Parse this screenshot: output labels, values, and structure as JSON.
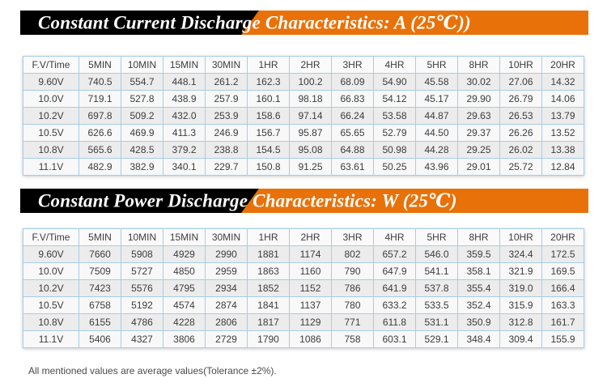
{
  "colors": {
    "banner_black": "#000000",
    "banner_orange": "#E87209",
    "table_border_blue": "#A6CDE6",
    "row_shade_odd": "#ECECEC",
    "row_shade_even": "#F8F8F8",
    "header_row_bg": "#FAFAFA",
    "text": "#3C3C3C"
  },
  "banners": [
    {
      "title": "Constant Current Discharge Characteristics: A (25℃))"
    },
    {
      "title": "Constant Power Discharge Characteristics: W (25℃)"
    }
  ],
  "tables": [
    {
      "name": "constant-current-discharge-table",
      "unit": "A",
      "columns": [
        "F.V/Time",
        "5MIN",
        "10MIN",
        "15MIN",
        "30MIN",
        "1HR",
        "2HR",
        "3HR",
        "4HR",
        "5HR",
        "8HR",
        "10HR",
        "20HR"
      ],
      "rows": [
        {
          "label": "9.60V",
          "values": [
            "740.5",
            "554.7",
            "448.1",
            "261.2",
            "162.3",
            "100.2",
            "68.09",
            "54.90",
            "45.58",
            "30.02",
            "27.06",
            "14.32"
          ]
        },
        {
          "label": "10.0V",
          "values": [
            "719.1",
            "527.8",
            "438.9",
            "257.9",
            "160.1",
            "98.18",
            "66.83",
            "54.12",
            "45.17",
            "29.90",
            "26.79",
            "14.06"
          ]
        },
        {
          "label": "10.2V",
          "values": [
            "697.8",
            "509.2",
            "432.0",
            "253.9",
            "158.6",
            "97.14",
            "66.24",
            "53.58",
            "44.87",
            "29.63",
            "26.53",
            "13.79"
          ]
        },
        {
          "label": "10.5V",
          "values": [
            "626.6",
            "469.9",
            "411.3",
            "246.9",
            "156.7",
            "95.87",
            "65.65",
            "52.79",
            "44.50",
            "29.37",
            "26.26",
            "13.52"
          ]
        },
        {
          "label": "10.8V",
          "values": [
            "565.6",
            "428.5",
            "379.2",
            "238.8",
            "154.5",
            "95.08",
            "64.88",
            "50.98",
            "44.28",
            "29.25",
            "26.02",
            "13.38"
          ]
        },
        {
          "label": "11.1V",
          "values": [
            "482.9",
            "382.9",
            "340.1",
            "229.7",
            "150.8",
            "91.25",
            "63.61",
            "50.25",
            "43.96",
            "29.01",
            "25.72",
            "12.84"
          ]
        }
      ]
    },
    {
      "name": "constant-power-discharge-table",
      "unit": "W",
      "columns": [
        "F.V/Time",
        "5MIN",
        "10MIN",
        "15MIN",
        "30MIN",
        "1HR",
        "2HR",
        "3HR",
        "4HR",
        "5HR",
        "8HR",
        "10HR",
        "20HR"
      ],
      "rows": [
        {
          "label": "9.60V",
          "values": [
            "7660",
            "5908",
            "4929",
            "2990",
            "1881",
            "1174",
            "802",
            "657.2",
            "546.0",
            "359.5",
            "324.4",
            "172.5"
          ]
        },
        {
          "label": "10.0V",
          "values": [
            "7509",
            "5727",
            "4850",
            "2959",
            "1863",
            "1160",
            "790",
            "647.9",
            "541.1",
            "358.1",
            "321.9",
            "169.5"
          ]
        },
        {
          "label": "10.2V",
          "values": [
            "7423",
            "5576",
            "4795",
            "2934",
            "1852",
            "1152",
            "786",
            "641.9",
            "537.8",
            "355.4",
            "319.0",
            "166.4"
          ]
        },
        {
          "label": "10.5V",
          "values": [
            "6758",
            "5192",
            "4574",
            "2874",
            "1841",
            "1137",
            "780",
            "633.2",
            "533.5",
            "352.4",
            "315.9",
            "163.3"
          ]
        },
        {
          "label": "10.8V",
          "values": [
            "6155",
            "4786",
            "4228",
            "2806",
            "1817",
            "1129",
            "771",
            "611.8",
            "531.1",
            "350.9",
            "312.8",
            "161.7"
          ]
        },
        {
          "label": "11.1V",
          "values": [
            "5406",
            "4327",
            "3806",
            "2729",
            "1790",
            "1086",
            "758",
            "603.1",
            "529.1",
            "348.4",
            "309.4",
            "155.9"
          ]
        }
      ]
    }
  ],
  "footer": {
    "note": "All mentioned values are average values(Tolerance ±2%)."
  }
}
